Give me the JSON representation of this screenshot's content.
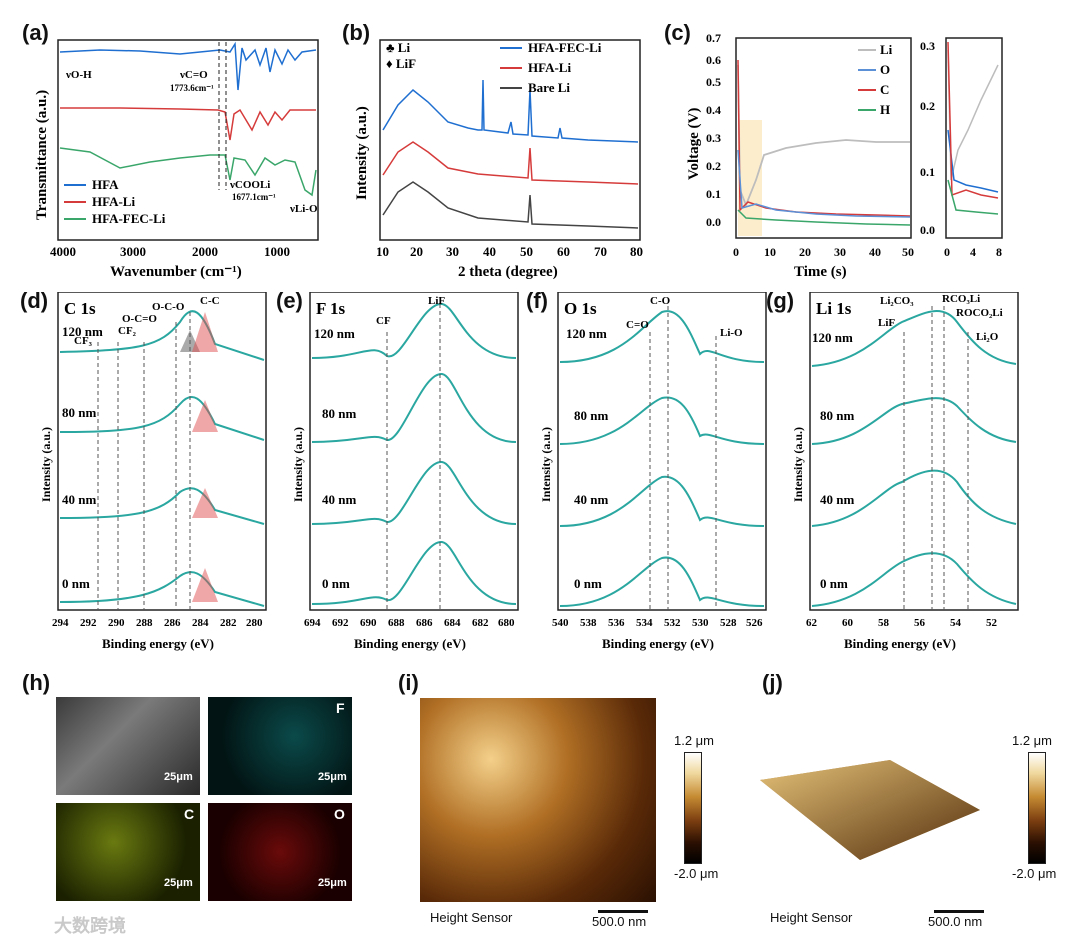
{
  "panels": {
    "a": {
      "label": "(a)",
      "xlabel": "Wavenumber (cm⁻¹)",
      "ylabel": "Transmittance (a.u.)",
      "xticks": [
        "4000",
        "3000",
        "2000",
        "1000"
      ],
      "legend": [
        "HFA",
        "HFA-Li",
        "HFA-FEC-Li"
      ],
      "ann": {
        "voh": "νO-H",
        "vco": "νC=O",
        "vco_val": "1773.6cm⁻¹",
        "vcooli": "νCOOLi",
        "vcooli_val": "1677.1cm⁻¹",
        "vlio": "νLi-O"
      }
    },
    "b": {
      "label": "(b)",
      "xlabel": "2 theta (degree)",
      "ylabel": "Intensity (a.u.)",
      "xticks": [
        "10",
        "20",
        "30",
        "40",
        "50",
        "60",
        "70",
        "80"
      ],
      "legend": [
        "HFA-FEC-Li",
        "HFA-Li",
        "Bare Li"
      ],
      "markers": {
        "li": "♣ Li",
        "lif": "♦ LiF"
      }
    },
    "c": {
      "label": "(c)",
      "xlabel": "Time (s)",
      "ylabel": "Voltage (V)",
      "yticks": [
        "0.0",
        "0.1",
        "0.2",
        "0.3",
        "0.4",
        "0.5",
        "0.6",
        "0.7"
      ],
      "xticks": [
        "0",
        "10",
        "20",
        "30",
        "40",
        "50"
      ],
      "inset_yticks": [
        "0.0",
        "0.1",
        "0.2",
        "0.3"
      ],
      "inset_xticks": [
        "0",
        "4",
        "8"
      ],
      "legend": [
        "Li",
        "O",
        "C",
        "H"
      ]
    },
    "d": {
      "label": "(d)",
      "title": "C 1s",
      "xticks": [
        "294",
        "292",
        "290",
        "288",
        "286",
        "284",
        "282",
        "280"
      ],
      "peaks": [
        "CF₃",
        "CF₂",
        "O-C=O",
        "O-C-O",
        "C-C"
      ]
    },
    "e": {
      "label": "(e)",
      "title": "F 1s",
      "xticks": [
        "694",
        "692",
        "690",
        "688",
        "686",
        "684",
        "682",
        "680"
      ],
      "peaks": [
        "CF",
        "LiF"
      ]
    },
    "f": {
      "label": "(f)",
      "title": "O 1s",
      "xticks": [
        "540",
        "538",
        "536",
        "534",
        "532",
        "530",
        "528",
        "526"
      ],
      "peaks": [
        "C=O",
        "C-O",
        "Li-O"
      ]
    },
    "g": {
      "label": "(g)",
      "title": "Li 1s",
      "xticks": [
        "62",
        "60",
        "58",
        "56",
        "54",
        "52"
      ],
      "peaks": [
        "LiF",
        "Li₂CO₃",
        "RCO₃Li",
        "ROCO₂Li",
        "Li₂O"
      ]
    },
    "xps_common": {
      "xlabel": "Binding energy (eV)",
      "ylabel": "Intensity (a.u.)",
      "depths": [
        "120 nm",
        "80 nm",
        "40 nm",
        "0 nm"
      ]
    },
    "h": {
      "label": "(h)",
      "tiles": [
        {
          "el": "",
          "scale": "25μm"
        },
        {
          "el": "F",
          "scale": "25μm"
        },
        {
          "el": "C",
          "scale": "25μm"
        },
        {
          "el": "O",
          "scale": "25μm"
        }
      ]
    },
    "i": {
      "label": "(i)",
      "cb_top": "1.2 μm",
      "cb_bot": "-2.0 μm",
      "caption": "Height Sensor",
      "scale": "500.0 nm"
    },
    "j": {
      "label": "(j)",
      "cb_top": "1.2 μm",
      "cb_bot": "-2.0 μm",
      "caption": "Height Sensor",
      "scale": "500.0 nm"
    }
  },
  "watermark": "大数跨境",
  "colors": {
    "blue": "#1f6fd1",
    "red": "#d63b3b",
    "green": "#3aa66a",
    "black": "#333333",
    "grey": "#bdbdbd",
    "teal": "#2aa7a0"
  },
  "chart_data": [
    {
      "type": "line",
      "panel": "a",
      "xlim": [
        4000,
        500
      ],
      "series": [
        {
          "name": "HFA"
        },
        {
          "name": "HFA-Li"
        },
        {
          "name": "HFA-FEC-Li"
        }
      ],
      "annotations": [
        {
          "text": "1773.6cm⁻¹",
          "x": 1773.6
        },
        {
          "text": "1677.1cm⁻¹",
          "x": 1677.1
        }
      ]
    },
    {
      "type": "line",
      "panel": "b",
      "xlim": [
        10,
        80
      ],
      "series": [
        {
          "name": "HFA-FEC-Li"
        },
        {
          "name": "HFA-Li"
        },
        {
          "name": "Bare Li"
        }
      ],
      "peaks_2theta": [
        18,
        36.2,
        44.9,
        52.3,
        65.3
      ]
    },
    {
      "type": "line",
      "panel": "c",
      "xlim": [
        0,
        50
      ],
      "ylim": [
        0,
        0.7
      ],
      "series": [
        {
          "name": "Li",
          "x": [
            0,
            0.5,
            2,
            5,
            10,
            20,
            30,
            40,
            50
          ],
          "y": [
            0.62,
            0.08,
            0.12,
            0.22,
            0.27,
            0.29,
            0.3,
            0.3,
            0.3
          ]
        },
        {
          "name": "O",
          "x": [
            0,
            2,
            5,
            10,
            20,
            30,
            40,
            50
          ],
          "y": [
            0.3,
            0.08,
            0.07,
            0.05,
            0.04,
            0.03,
            0.03,
            0.02
          ]
        },
        {
          "name": "C",
          "x": [
            0,
            2,
            5,
            10,
            20,
            30,
            40,
            50
          ],
          "y": [
            0.62,
            0.07,
            0.06,
            0.05,
            0.04,
            0.03,
            0.03,
            0.03
          ]
        },
        {
          "name": "H",
          "x": [
            0,
            2,
            5,
            10,
            20,
            30,
            40,
            50
          ],
          "y": [
            0.08,
            0.04,
            0.035,
            0.03,
            0.028,
            0.025,
            0.022,
            0.02
          ]
        }
      ]
    }
  ]
}
